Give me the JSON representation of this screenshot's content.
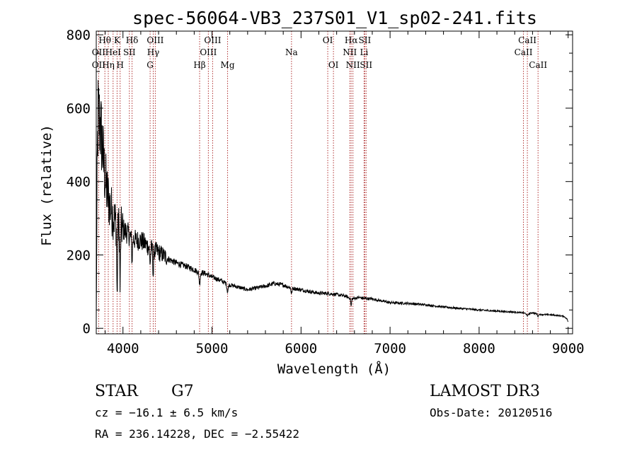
{
  "chart_data": {
    "type": "line",
    "title": "spec-56064-VB3_237S01_V1_sp02-241.fits",
    "xlabel": "Wavelength (Å)",
    "ylabel": "Flux (relative)",
    "xlim": [
      3700,
      9050
    ],
    "ylim": [
      -15,
      810
    ],
    "xticks": [
      4000,
      5000,
      6000,
      7000,
      8000,
      9000
    ],
    "yticks": [
      0,
      200,
      400,
      600,
      800
    ],
    "spectrum_anchors": {
      "x": [
        3700,
        3710,
        3720,
        3740,
        3760,
        3790,
        3820,
        3860,
        3900,
        3940,
        3970,
        4000,
        4050,
        4100,
        4150,
        4200,
        4250,
        4300,
        4340,
        4380,
        4450,
        4500,
        4600,
        4700,
        4800,
        4861,
        4900,
        5000,
        5100,
        5175,
        5300,
        5400,
        5500,
        5600,
        5700,
        5800,
        5890,
        6000,
        6100,
        6200,
        6300,
        6400,
        6500,
        6563,
        6650,
        6700,
        6800,
        6900,
        7000,
        7200,
        7400,
        7600,
        7800,
        8000,
        8200,
        8400,
        8500,
        8542,
        8600,
        8662,
        8800,
        8950,
        8990,
        9000
      ],
      "y": [
        20,
        420,
        580,
        560,
        520,
        430,
        370,
        330,
        300,
        280,
        275,
        270,
        260,
        245,
        240,
        240,
        230,
        220,
        215,
        210,
        200,
        190,
        178,
        170,
        160,
        150,
        152,
        140,
        130,
        120,
        112,
        105,
        110,
        115,
        122,
        118,
        110,
        105,
        100,
        96,
        95,
        92,
        88,
        80,
        84,
        82,
        80,
        75,
        70,
        68,
        64,
        58,
        54,
        50,
        47,
        44,
        42,
        38,
        43,
        38,
        37,
        33,
        25,
        15
      ],
      "note": "approximate continuum of the plotted flux curve; the drawn curve adds absorption dips and noise around it"
    },
    "spectral_lines": [
      {
        "label": "Hθ",
        "x": 3797,
        "row": 1
      },
      {
        "label": "OII",
        "x": 3727,
        "row": 2
      },
      {
        "label": "OII",
        "x": 3727,
        "row": 3
      },
      {
        "label": "K",
        "x": 3934,
        "row": 1
      },
      {
        "label": "HeI",
        "x": 3889,
        "row": 2
      },
      {
        "label": "Hη",
        "x": 3835,
        "row": 3
      },
      {
        "label": "H",
        "x": 3968,
        "row": 3
      },
      {
        "label": "Hδ",
        "x": 4102,
        "row": 1
      },
      {
        "label": "SII",
        "x": 4072,
        "row": 2
      },
      {
        "label": "OIII",
        "x": 4363,
        "row": 1
      },
      {
        "label": "Hγ",
        "x": 4340,
        "row": 2
      },
      {
        "label": "G",
        "x": 4305,
        "row": 3
      },
      {
        "label": "OIII",
        "x": 5007,
        "row": 1
      },
      {
        "label": "OIII",
        "x": 4959,
        "row": 2
      },
      {
        "label": "Hβ",
        "x": 4861,
        "row": 3
      },
      {
        "label": "Mg",
        "x": 5175,
        "row": 3
      },
      {
        "label": "Na",
        "x": 5893,
        "row": 2
      },
      {
        "label": "OI",
        "x": 6300,
        "row": 1
      },
      {
        "label": "OI",
        "x": 6364,
        "row": 3
      },
      {
        "label": "Hα",
        "x": 6563,
        "row": 1
      },
      {
        "label": "SII",
        "x": 6716,
        "row": 1
      },
      {
        "label": "NII",
        "x": 6548,
        "row": 2
      },
      {
        "label": "Li",
        "x": 6708,
        "row": 2
      },
      {
        "label": "NII",
        "x": 6583,
        "row": 3
      },
      {
        "label": "SII",
        "x": 6731,
        "row": 3
      },
      {
        "label": "CaII",
        "x": 8542,
        "row": 1
      },
      {
        "label": "CaII",
        "x": 8498,
        "row": 2
      },
      {
        "label": "CaII",
        "x": 8662,
        "row": 3
      }
    ],
    "line_color": "#000000",
    "marker_color": "#b03030"
  },
  "info": {
    "object_class": "STAR",
    "subclass": "G7",
    "survey": "LAMOST DR3",
    "cz": "cz = −16.1 ± 6.5 km/s",
    "obs_date": "Obs-Date: 20120516",
    "coords": "RA = 236.14228, DEC =  −2.55422"
  }
}
